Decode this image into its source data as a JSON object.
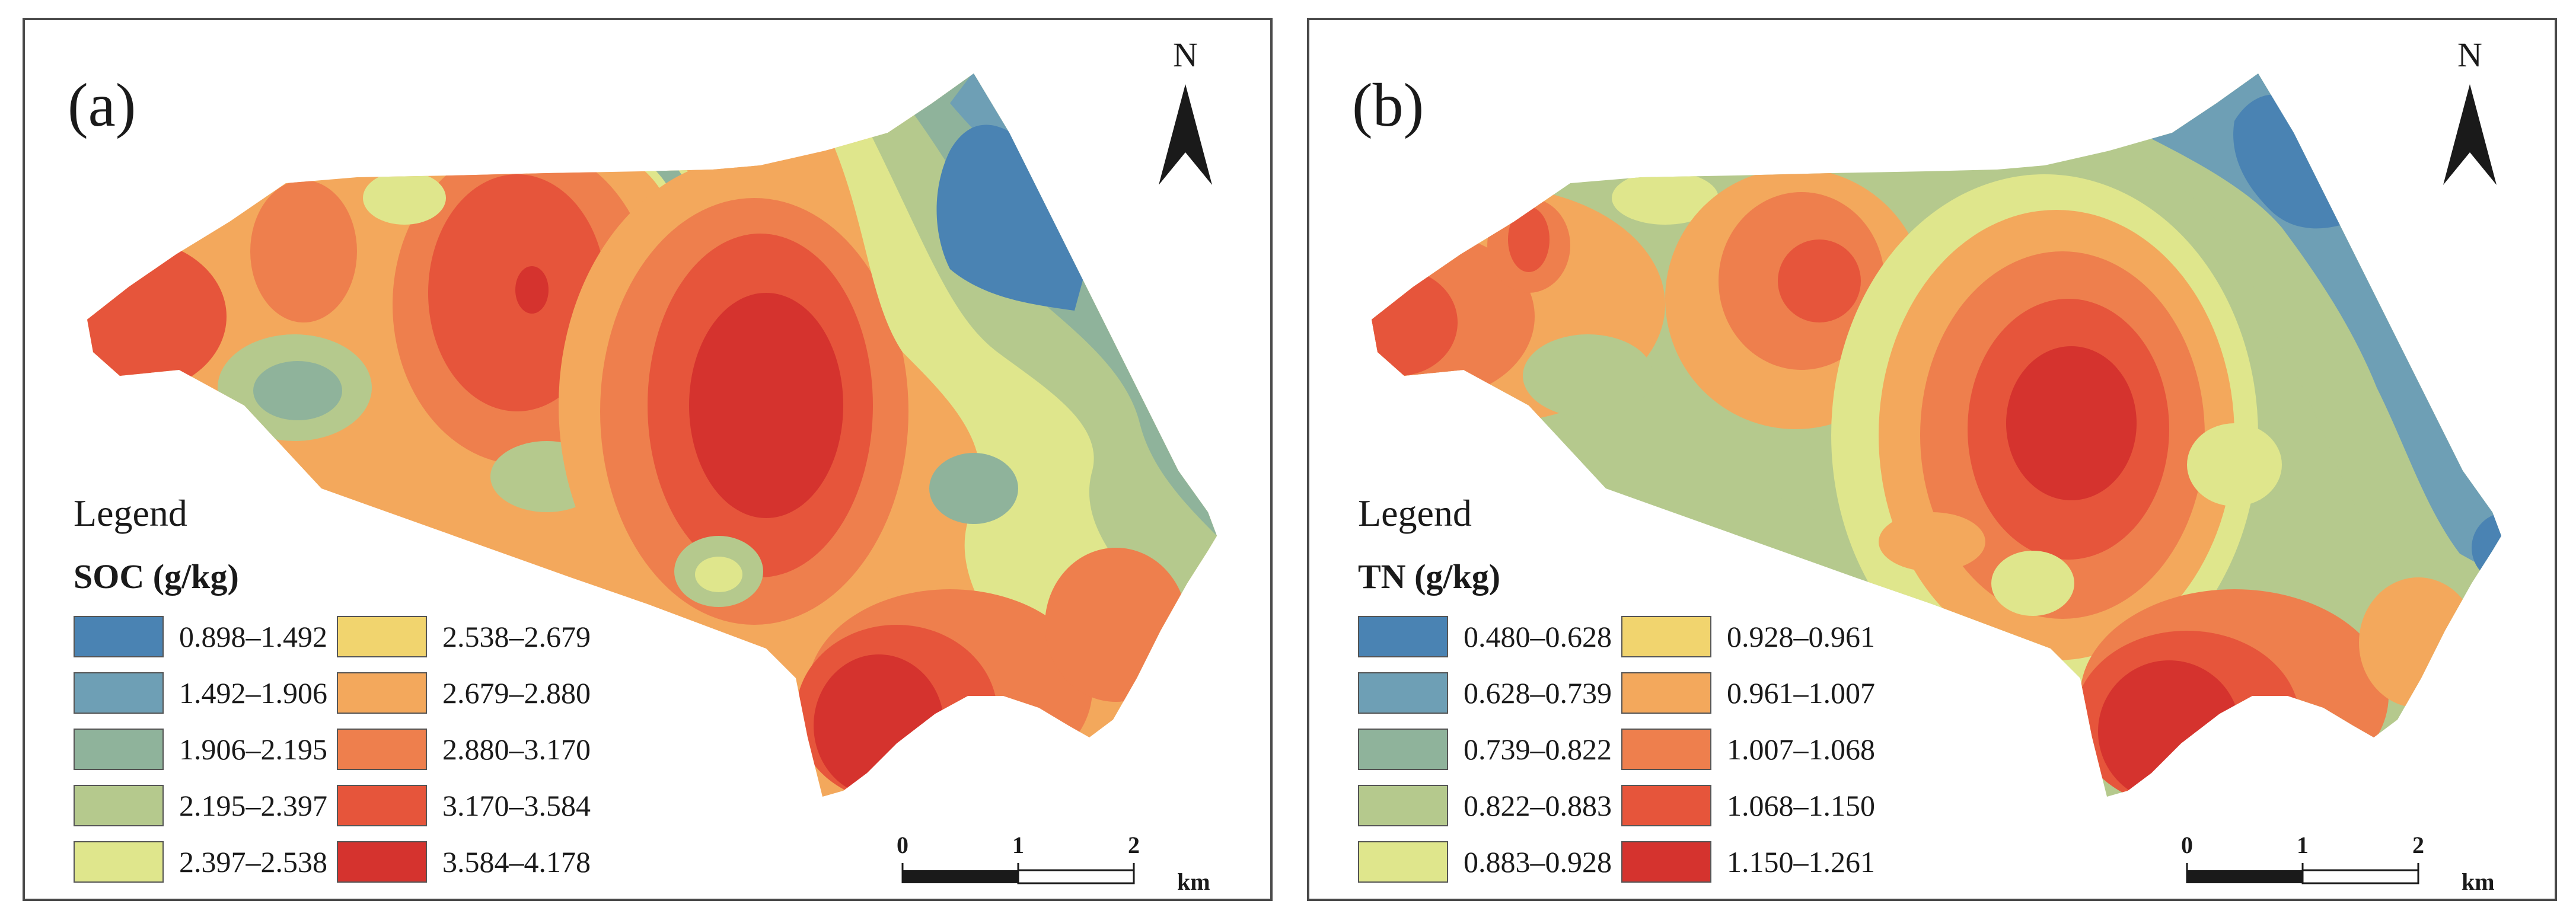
{
  "panels": {
    "a": {
      "label": "(a)",
      "north": "N",
      "legend_title": "Legend",
      "variable": "SOC (g/kg)",
      "classes": [
        {
          "range": "0.898–1.492",
          "color": "#4a83b3"
        },
        {
          "range": "1.492–1.906",
          "color": "#6e9fb5"
        },
        {
          "range": "1.906–2.195",
          "color": "#8fb39b"
        },
        {
          "range": "2.195–2.397",
          "color": "#b5c98d"
        },
        {
          "range": "2.397–2.538",
          "color": "#dfe68c"
        },
        {
          "range": "2.538–2.679",
          "color": "#f1d46e"
        },
        {
          "range": "2.679–2.880",
          "color": "#f3a85c"
        },
        {
          "range": "2.880–3.170",
          "color": "#ee7f4d"
        },
        {
          "range": "3.170–3.584",
          "color": "#e6553b"
        },
        {
          "range": "3.584–4.178",
          "color": "#d5332e"
        }
      ],
      "scale": {
        "ticks": [
          "0",
          "1",
          "2"
        ],
        "unit": "km"
      }
    },
    "b": {
      "label": "(b)",
      "north": "N",
      "legend_title": "Legend",
      "variable": "TN (g/kg)",
      "classes": [
        {
          "range": "0.480–0.628",
          "color": "#4a83b3"
        },
        {
          "range": "0.628–0.739",
          "color": "#6e9fb5"
        },
        {
          "range": "0.739–0.822",
          "color": "#8fb39b"
        },
        {
          "range": "0.822–0.883",
          "color": "#b5c98d"
        },
        {
          "range": "0.883–0.928",
          "color": "#dfe68c"
        },
        {
          "range": "0.928–0.961",
          "color": "#f1d46e"
        },
        {
          "range": "0.961–1.007",
          "color": "#f3a85c"
        },
        {
          "range": "1.007–1.068",
          "color": "#ee7f4d"
        },
        {
          "range": "1.068–1.150",
          "color": "#e6553b"
        },
        {
          "range": "1.150–1.261",
          "color": "#d5332e"
        }
      ],
      "scale": {
        "ticks": [
          "0",
          "1",
          "2"
        ],
        "unit": "km"
      }
    }
  }
}
